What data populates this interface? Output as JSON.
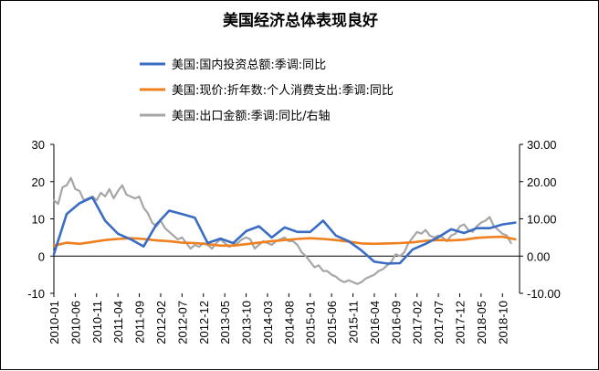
{
  "chart_data": {
    "type": "line",
    "title": "美国经济总体表现良好",
    "legend_position": "top",
    "grid": false,
    "x_tick_labels": [
      "2010-01",
      "2010-06",
      "2010-11",
      "2011-04",
      "2011-09",
      "2012-02",
      "2012-07",
      "2012-12",
      "2013-05",
      "2013-10",
      "2014-03",
      "2014-08",
      "2015-01",
      "2015-06",
      "2015-11",
      "2016-04",
      "2016-09",
      "2017-02",
      "2017-07",
      "2017-12",
      "2018-05",
      "2018-10"
    ],
    "y_left": {
      "min": -10,
      "max": 30,
      "ticks": [
        "-10",
        "0",
        "10",
        "20",
        "30"
      ]
    },
    "y_right": {
      "min": -10,
      "max": 30,
      "ticks": [
        "-10.00",
        "0.00",
        "10.00",
        "20.00",
        "30.00"
      ]
    },
    "series": [
      {
        "name": "美国:国内投资总额:季调:同比",
        "axis": "left",
        "color": "#3a6cc4",
        "x": [
          "2010-01",
          "2010-04",
          "2010-07",
          "2010-10",
          "2011-01",
          "2011-04",
          "2011-07",
          "2011-10",
          "2012-01",
          "2012-04",
          "2012-07",
          "2012-10",
          "2013-01",
          "2013-04",
          "2013-07",
          "2013-10",
          "2014-01",
          "2014-04",
          "2014-07",
          "2014-10",
          "2015-01",
          "2015-04",
          "2015-07",
          "2015-10",
          "2016-01",
          "2016-04",
          "2016-07",
          "2016-10",
          "2017-01",
          "2017-04",
          "2017-07",
          "2017-10",
          "2018-01",
          "2018-04",
          "2018-07",
          "2018-10",
          "2019-01"
        ],
        "values": [
          0.5,
          11.3,
          14.2,
          15.8,
          9.5,
          6.0,
          4.5,
          2.6,
          8.5,
          12.2,
          11.3,
          10.3,
          3.5,
          4.7,
          3.5,
          6.7,
          8.0,
          5.0,
          7.7,
          6.5,
          6.5,
          9.5,
          5.5,
          4.0,
          1.5,
          -1.5,
          -2.0,
          -1.9,
          1.8,
          3.3,
          5.1,
          7.2,
          6.2,
          7.5,
          7.5,
          8.5,
          9.0
        ]
      },
      {
        "name": "美国:现价:折年数:个人消费支出:季调:同比",
        "axis": "left",
        "color": "#f07f1e",
        "x": [
          "2010-01",
          "2010-04",
          "2010-07",
          "2010-10",
          "2011-01",
          "2011-04",
          "2011-07",
          "2011-10",
          "2012-01",
          "2012-04",
          "2012-07",
          "2012-10",
          "2013-01",
          "2013-04",
          "2013-07",
          "2013-10",
          "2014-01",
          "2014-04",
          "2014-07",
          "2014-10",
          "2015-01",
          "2015-04",
          "2015-07",
          "2015-10",
          "2016-01",
          "2016-04",
          "2016-07",
          "2016-10",
          "2017-01",
          "2017-04",
          "2017-07",
          "2017-10",
          "2018-01",
          "2018-04",
          "2018-07",
          "2018-10",
          "2019-01"
        ],
        "values": [
          2.8,
          3.6,
          3.3,
          3.8,
          4.3,
          4.6,
          4.8,
          4.6,
          4.2,
          4.0,
          3.6,
          3.5,
          3.2,
          2.8,
          2.8,
          3.2,
          3.6,
          4.0,
          4.3,
          4.6,
          4.8,
          4.6,
          4.3,
          3.9,
          3.4,
          3.3,
          3.4,
          3.5,
          3.7,
          4.1,
          4.3,
          4.2,
          4.4,
          4.9,
          5.1,
          5.2,
          4.5
        ]
      },
      {
        "name": "美国:出口金额:季调:同比/右轴",
        "axis": "right",
        "color": "#a6a6a6",
        "x": [
          "2010-01",
          "2010-02",
          "2010-03",
          "2010-04",
          "2010-05",
          "2010-06",
          "2010-07",
          "2010-08",
          "2010-09",
          "2010-10",
          "2010-11",
          "2010-12",
          "2011-01",
          "2011-02",
          "2011-03",
          "2011-04",
          "2011-05",
          "2011-06",
          "2011-07",
          "2011-08",
          "2011-09",
          "2011-10",
          "2011-11",
          "2011-12",
          "2012-01",
          "2012-02",
          "2012-03",
          "2012-04",
          "2012-05",
          "2012-06",
          "2012-07",
          "2012-08",
          "2012-09",
          "2012-10",
          "2012-11",
          "2012-12",
          "2013-01",
          "2013-02",
          "2013-03",
          "2013-04",
          "2013-05",
          "2013-06",
          "2013-07",
          "2013-08",
          "2013-09",
          "2013-10",
          "2013-11",
          "2013-12",
          "2014-01",
          "2014-02",
          "2014-03",
          "2014-04",
          "2014-05",
          "2014-06",
          "2014-07",
          "2014-08",
          "2014-09",
          "2014-10",
          "2014-11",
          "2014-12",
          "2015-01",
          "2015-02",
          "2015-03",
          "2015-04",
          "2015-05",
          "2015-06",
          "2015-07",
          "2015-08",
          "2015-09",
          "2015-10",
          "2015-11",
          "2015-12",
          "2016-01",
          "2016-02",
          "2016-03",
          "2016-04",
          "2016-05",
          "2016-06",
          "2016-07",
          "2016-08",
          "2016-09",
          "2016-10",
          "2016-11",
          "2016-12",
          "2017-01",
          "2017-02",
          "2017-03",
          "2017-04",
          "2017-05",
          "2017-06",
          "2017-07",
          "2017-08",
          "2017-09",
          "2017-10",
          "2017-11",
          "2017-12",
          "2018-01",
          "2018-02",
          "2018-03",
          "2018-04",
          "2018-05",
          "2018-06",
          "2018-07",
          "2018-08",
          "2018-09",
          "2018-10",
          "2018-11",
          "2018-12"
        ],
        "values": [
          15.0,
          14.0,
          18.5,
          19.0,
          21.0,
          18.0,
          17.5,
          15.0,
          15.5,
          16.0,
          15.0,
          17.0,
          16.0,
          18.0,
          15.5,
          17.5,
          19.0,
          16.5,
          16.0,
          15.5,
          16.0,
          13.0,
          11.5,
          9.0,
          8.0,
          9.5,
          7.5,
          6.5,
          5.5,
          4.5,
          5.0,
          3.5,
          2.0,
          3.0,
          2.5,
          3.5,
          3.0,
          2.0,
          3.5,
          4.5,
          3.5,
          2.5,
          3.0,
          3.5,
          4.5,
          5.0,
          4.5,
          2.0,
          3.0,
          4.0,
          3.5,
          3.0,
          4.0,
          4.5,
          5.0,
          4.0,
          4.0,
          3.0,
          1.0,
          0.0,
          -1.5,
          -3.0,
          -2.5,
          -4.0,
          -4.0,
          -5.0,
          -5.5,
          -6.5,
          -7.0,
          -6.5,
          -7.0,
          -7.5,
          -7.0,
          -6.0,
          -5.5,
          -5.0,
          -4.0,
          -3.5,
          -2.5,
          -1.5,
          0.5,
          0.0,
          1.0,
          3.5,
          5.0,
          6.5,
          6.0,
          7.0,
          5.5,
          5.0,
          5.5,
          5.0,
          4.0,
          5.5,
          6.0,
          8.0,
          8.5,
          7.0,
          6.5,
          8.0,
          9.0,
          9.5,
          10.5,
          8.0,
          7.0,
          6.0,
          5.5,
          3.5
        ]
      }
    ]
  }
}
